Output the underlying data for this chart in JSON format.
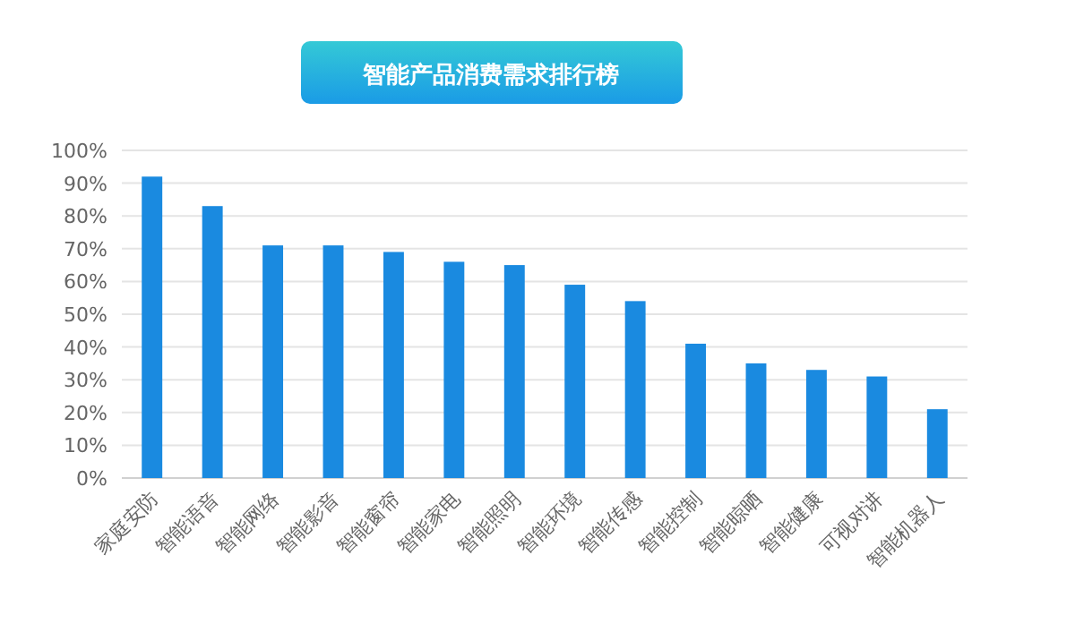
{
  "chart_data": {
    "type": "bar",
    "title": "智能产品消费需求排行榜",
    "categories": [
      "家庭安防",
      "智能语音",
      "智能网络",
      "智能影音",
      "智能窗帘",
      "智能家电",
      "智能照明",
      "智能环境",
      "智能传感",
      "智能控制",
      "智能晾晒",
      "智能健康",
      "可视对讲",
      "智能机器人"
    ],
    "values": [
      92,
      83,
      71,
      71,
      69,
      66,
      65,
      59,
      54,
      41,
      35,
      33,
      31,
      21
    ],
    "color": "#1a8ae0",
    "ylim": [
      0,
      100
    ],
    "yticks": [
      {
        "value": 0,
        "label": "0%"
      },
      {
        "value": 10,
        "label": "10%"
      },
      {
        "value": 20,
        "label": "20%"
      },
      {
        "value": 30,
        "label": "30%"
      },
      {
        "value": 40,
        "label": "40%"
      },
      {
        "value": 50,
        "label": "50%"
      },
      {
        "value": 60,
        "label": "60%"
      },
      {
        "value": 70,
        "label": "70%"
      },
      {
        "value": 80,
        "label": "80%"
      },
      {
        "value": 90,
        "label": "90%"
      },
      {
        "value": 100,
        "label": "100%"
      }
    ],
    "grid": "y"
  }
}
